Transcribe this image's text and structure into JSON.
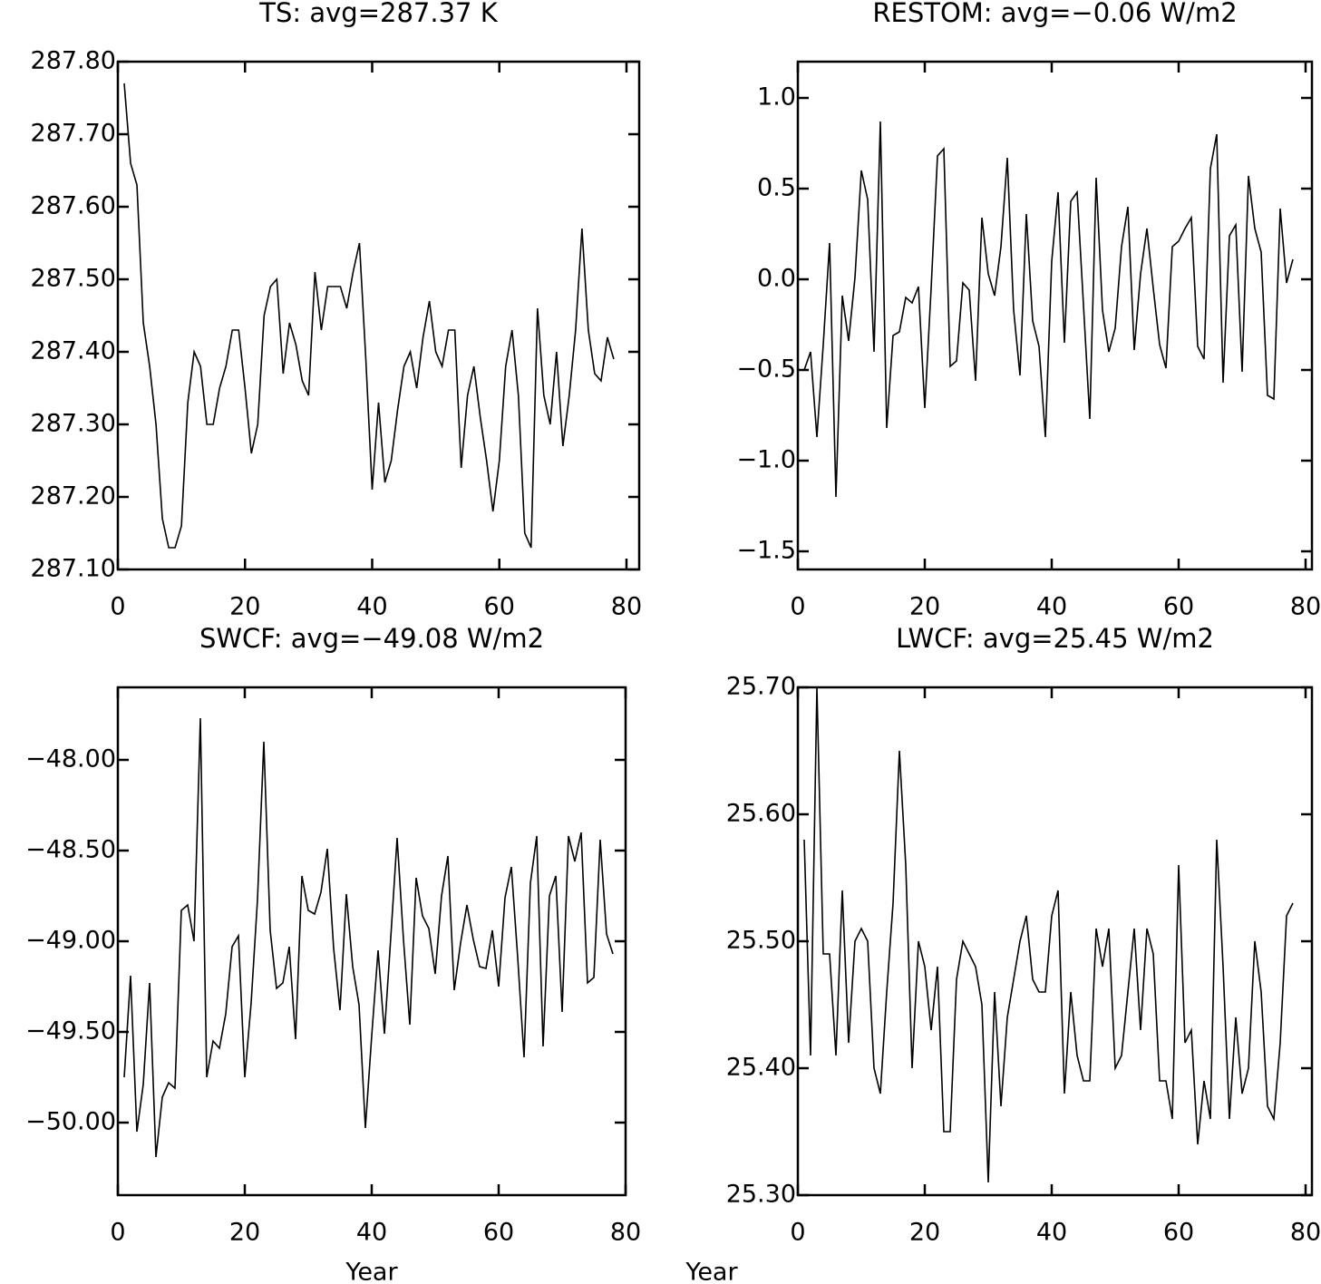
{
  "chart_data": [
    {
      "type": "line",
      "title": "TS: avg=287.37 K",
      "color": "#000000",
      "x": [
        1,
        2,
        3,
        4,
        5,
        6,
        7,
        8,
        9,
        10,
        11,
        12,
        13,
        14,
        15,
        16,
        17,
        18,
        19,
        20,
        21,
        22,
        23,
        24,
        25,
        26,
        27,
        28,
        29,
        30,
        31,
        32,
        33,
        34,
        35,
        36,
        37,
        38,
        39,
        40,
        41,
        42,
        43,
        44,
        45,
        46,
        47,
        48,
        49,
        50,
        51,
        52,
        53,
        54,
        55,
        56,
        57,
        58,
        59,
        60,
        61,
        62,
        63,
        64,
        65,
        66,
        67,
        68,
        69,
        70,
        71,
        72,
        73,
        74,
        75,
        76,
        77,
        78
      ],
      "values": [
        287.77,
        287.66,
        287.63,
        287.44,
        287.38,
        287.3,
        287.17,
        287.13,
        287.13,
        287.16,
        287.33,
        287.4,
        287.38,
        287.3,
        287.3,
        287.35,
        287.38,
        287.43,
        287.43,
        287.35,
        287.26,
        287.3,
        287.45,
        287.49,
        287.5,
        287.37,
        287.44,
        287.41,
        287.36,
        287.34,
        287.51,
        287.43,
        287.49,
        287.49,
        287.49,
        287.46,
        287.51,
        287.55,
        287.39,
        287.21,
        287.33,
        287.22,
        287.25,
        287.32,
        287.38,
        287.4,
        287.35,
        287.42,
        287.47,
        287.4,
        287.38,
        287.43,
        287.43,
        287.24,
        287.34,
        287.38,
        287.31,
        287.25,
        287.18,
        287.25,
        287.38,
        287.43,
        287.34,
        287.15,
        287.13,
        287.46,
        287.34,
        287.3,
        287.4,
        287.27,
        287.34,
        287.43,
        287.57,
        287.43,
        287.37,
        287.36,
        287.42,
        287.39
      ],
      "xlim": [
        0,
        82
      ],
      "xticks": [
        0,
        20,
        40,
        60,
        80
      ],
      "ylim": [
        287.1,
        287.8
      ],
      "yticks": [
        {
          "value": 287.1,
          "label": "287.10"
        },
        {
          "value": 287.2,
          "label": "287.20"
        },
        {
          "value": 287.3,
          "label": "287.30"
        },
        {
          "value": 287.4,
          "label": "287.40"
        },
        {
          "value": 287.5,
          "label": "287.50"
        },
        {
          "value": 287.6,
          "label": "287.60"
        },
        {
          "value": 287.7,
          "label": "287.70"
        },
        {
          "value": 287.8,
          "label": "287.80"
        }
      ]
    },
    {
      "type": "line",
      "title": "RESTOM: avg=−0.06 W/m2",
      "color": "#000000",
      "x": [
        1,
        2,
        3,
        4,
        5,
        6,
        7,
        8,
        9,
        10,
        11,
        12,
        13,
        14,
        15,
        16,
        17,
        18,
        19,
        20,
        21,
        22,
        23,
        24,
        25,
        26,
        27,
        28,
        29,
        30,
        31,
        32,
        33,
        34,
        35,
        36,
        37,
        38,
        39,
        40,
        41,
        42,
        43,
        44,
        45,
        46,
        47,
        48,
        49,
        50,
        51,
        52,
        53,
        54,
        55,
        56,
        57,
        58,
        59,
        60,
        61,
        62,
        63,
        64,
        65,
        66,
        67,
        68,
        69,
        70,
        71,
        72,
        73,
        74,
        75,
        76,
        77,
        78
      ],
      "values": [
        -0.5,
        -0.4,
        -0.87,
        -0.36,
        0.2,
        -1.2,
        -0.09,
        -0.34,
        0.01,
        0.6,
        0.44,
        -0.4,
        0.87,
        -0.82,
        -0.31,
        -0.29,
        -0.1,
        -0.13,
        -0.04,
        -0.71,
        -0.05,
        0.68,
        0.72,
        -0.48,
        -0.45,
        -0.02,
        -0.06,
        -0.56,
        0.34,
        0.03,
        -0.09,
        0.18,
        0.67,
        -0.17,
        -0.53,
        0.36,
        -0.23,
        -0.37,
        -0.87,
        0.1,
        0.48,
        -0.35,
        0.43,
        0.48,
        -0.14,
        -0.77,
        0.56,
        -0.17,
        -0.4,
        -0.27,
        0.18,
        0.4,
        -0.39,
        0.03,
        0.28,
        -0.05,
        -0.36,
        -0.49,
        0.18,
        0.21,
        0.28,
        0.34,
        -0.37,
        -0.44,
        0.61,
        0.8,
        -0.57,
        0.24,
        0.3,
        -0.51,
        0.57,
        0.28,
        0.15,
        -0.64,
        -0.66,
        0.39,
        -0.02,
        0.11
      ],
      "xlim": [
        0,
        81
      ],
      "xticks": [
        0,
        20,
        40,
        60,
        80
      ],
      "ylim": [
        -1.6,
        1.2
      ],
      "yticks": [
        {
          "value": -1.5,
          "label": "−1.5"
        },
        {
          "value": -1.0,
          "label": "−1.0"
        },
        {
          "value": -0.5,
          "label": "−0.5"
        },
        {
          "value": 0,
          "label": "0.0"
        },
        {
          "value": 0.5,
          "label": "0.5"
        },
        {
          "value": 1.0,
          "label": "1.0"
        }
      ]
    },
    {
      "type": "line",
      "title": "SWCF: avg=−49.08 W/m2",
      "x_label": "Year",
      "color": "#000000",
      "x": [
        1,
        2,
        3,
        4,
        5,
        6,
        7,
        8,
        9,
        10,
        11,
        12,
        13,
        14,
        15,
        16,
        17,
        18,
        19,
        20,
        21,
        22,
        23,
        24,
        25,
        26,
        27,
        28,
        29,
        30,
        31,
        32,
        33,
        34,
        35,
        36,
        37,
        38,
        39,
        40,
        41,
        42,
        43,
        44,
        45,
        46,
        47,
        48,
        49,
        50,
        51,
        52,
        53,
        54,
        55,
        56,
        57,
        58,
        59,
        60,
        61,
        62,
        63,
        64,
        65,
        66,
        67,
        68,
        69,
        70,
        71,
        72,
        73,
        74,
        75,
        76,
        77,
        78
      ],
      "values": [
        -49.75,
        -49.19,
        -50.05,
        -49.79,
        -49.23,
        -50.19,
        -49.86,
        -49.78,
        -49.81,
        -48.83,
        -48.8,
        -49.0,
        -47.77,
        -49.75,
        -49.55,
        -49.59,
        -49.4,
        -49.03,
        -48.97,
        -49.75,
        -49.34,
        -48.77,
        -47.9,
        -48.94,
        -49.26,
        -49.23,
        -49.03,
        -49.54,
        -48.64,
        -48.83,
        -48.85,
        -48.73,
        -48.49,
        -49.04,
        -49.38,
        -48.74,
        -49.14,
        -49.35,
        -50.03,
        -49.52,
        -49.05,
        -49.51,
        -48.98,
        -48.43,
        -48.99,
        -49.46,
        -48.65,
        -48.86,
        -48.93,
        -49.18,
        -48.75,
        -48.53,
        -49.27,
        -49.01,
        -48.8,
        -48.99,
        -49.14,
        -49.15,
        -48.94,
        -49.25,
        -48.76,
        -48.59,
        -49.09,
        -49.64,
        -48.68,
        -48.42,
        -49.58,
        -48.75,
        -48.64,
        -49.39,
        -48.42,
        -48.56,
        -48.4,
        -49.23,
        -49.2,
        -48.44,
        -48.96,
        -49.07
      ],
      "xlim": [
        0,
        80
      ],
      "xticks": [
        0,
        20,
        40,
        60,
        80
      ],
      "ylim": [
        -50.4,
        -47.6
      ],
      "yticks": [
        {
          "value": -50.0,
          "label": "−50.00"
        },
        {
          "value": -49.5,
          "label": "−49.50"
        },
        {
          "value": -49.0,
          "label": "−49.00"
        },
        {
          "value": -48.5,
          "label": "−48.50"
        },
        {
          "value": -48.0,
          "label": "−48.00"
        }
      ]
    },
    {
      "type": "line",
      "title": "LWCF: avg=25.45 W/m2",
      "x_label": "Year",
      "color": "#000000",
      "x": [
        1,
        2,
        3,
        4,
        5,
        6,
        7,
        8,
        9,
        10,
        11,
        12,
        13,
        14,
        15,
        16,
        17,
        18,
        19,
        20,
        21,
        22,
        23,
        24,
        25,
        26,
        27,
        28,
        29,
        30,
        31,
        32,
        33,
        34,
        35,
        36,
        37,
        38,
        39,
        40,
        41,
        42,
        43,
        44,
        45,
        46,
        47,
        48,
        49,
        50,
        51,
        52,
        53,
        54,
        55,
        56,
        57,
        58,
        59,
        60,
        61,
        62,
        63,
        64,
        65,
        66,
        67,
        68,
        69,
        70,
        71,
        72,
        73,
        74,
        75,
        76,
        77,
        78
      ],
      "values": [
        25.58,
        25.41,
        25.7,
        25.49,
        25.49,
        25.41,
        25.54,
        25.42,
        25.5,
        25.51,
        25.5,
        25.4,
        25.38,
        25.46,
        25.53,
        25.65,
        25.56,
        25.4,
        25.5,
        25.48,
        25.43,
        25.48,
        25.35,
        25.35,
        25.47,
        25.5,
        25.49,
        25.48,
        25.45,
        25.31,
        25.46,
        25.37,
        25.44,
        25.47,
        25.5,
        25.52,
        25.47,
        25.46,
        25.46,
        25.52,
        25.54,
        25.38,
        25.46,
        25.41,
        25.39,
        25.39,
        25.51,
        25.48,
        25.51,
        25.4,
        25.41,
        25.46,
        25.51,
        25.43,
        25.51,
        25.49,
        25.39,
        25.39,
        25.36,
        25.56,
        25.42,
        25.43,
        25.34,
        25.39,
        25.36,
        25.58,
        25.48,
        25.36,
        25.44,
        25.38,
        25.4,
        25.5,
        25.46,
        25.37,
        25.36,
        25.42,
        25.52,
        25.53
      ],
      "xlim": [
        0,
        81
      ],
      "xticks": [
        0,
        20,
        40,
        60,
        80
      ],
      "ylim": [
        25.3,
        25.7
      ],
      "yticks": [
        {
          "value": 25.3,
          "label": "25.30"
        },
        {
          "value": 25.4,
          "label": "25.40"
        },
        {
          "value": 25.5,
          "label": "25.50"
        },
        {
          "value": 25.6,
          "label": "25.60"
        },
        {
          "value": 25.7,
          "label": "25.70"
        }
      ]
    }
  ]
}
